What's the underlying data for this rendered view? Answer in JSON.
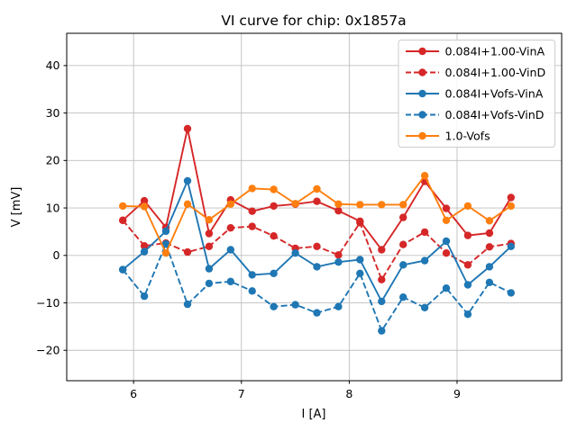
{
  "figure": {
    "title": "VI curve for chip: 0x1857a",
    "xlabel": "I [A]",
    "ylabel": "V [mV]"
  },
  "chart_data": {
    "type": "line",
    "title": "VI curve for chip: 0x1857a",
    "xlabel": "I [A]",
    "ylabel": "V [mV]",
    "xlim": [
      5.38,
      9.97
    ],
    "ylim": [
      -26.4,
      46.8
    ],
    "xticks": [
      6,
      7,
      8,
      9
    ],
    "yticks": [
      -20,
      -10,
      0,
      10,
      20,
      30,
      40
    ],
    "grid": true,
    "legend_position": "upper right",
    "grid_color": "#bfbfbf",
    "x": [
      5.9,
      6.1,
      6.3,
      6.5,
      6.7,
      6.9,
      7.1,
      7.3,
      7.5,
      7.7,
      7.9,
      8.1,
      8.3,
      8.5,
      8.7,
      8.9,
      9.1,
      9.3,
      9.5
    ],
    "series": [
      {
        "name": "0.084I+1.00-VinA",
        "color": "#d62728",
        "style": "solid",
        "marker": "circle",
        "values": [
          7.4,
          11.5,
          5.9,
          26.7,
          4.6,
          11.7,
          9.3,
          10.4,
          10.8,
          11.4,
          9.4,
          7.2,
          1.2,
          8.0,
          15.6,
          9.9,
          4.2,
          4.7,
          12.2
        ]
      },
      {
        "name": "0.084I+1.00-VinD",
        "color": "#d62728",
        "style": "dashed",
        "marker": "circle",
        "values": [
          7.4,
          2.0,
          2.6,
          0.7,
          1.9,
          5.8,
          6.1,
          4.1,
          1.5,
          1.9,
          0.1,
          6.9,
          -5.1,
          2.3,
          4.9,
          0.5,
          -2.0,
          1.8,
          2.5
        ]
      },
      {
        "name": "0.084I+Vofs-VinA",
        "color": "#1f77b4",
        "style": "solid",
        "marker": "circle",
        "values": [
          -3.0,
          0.8,
          5.1,
          15.7,
          -2.8,
          1.2,
          -4.1,
          -3.8,
          0.5,
          -2.4,
          -1.4,
          -0.9,
          -9.7,
          -2.0,
          -1.1,
          3.0,
          -6.2,
          -2.4,
          1.9
        ]
      },
      {
        "name": "0.084I+Vofs-VinD",
        "color": "#1f77b4",
        "style": "dashed",
        "marker": "circle",
        "values": [
          -3.0,
          -8.6,
          2.4,
          -10.3,
          -5.9,
          -5.5,
          -7.5,
          -10.8,
          -10.4,
          -12.1,
          -10.8,
          -3.8,
          -15.9,
          -8.8,
          -11.0,
          -6.9,
          -12.4,
          -5.7,
          -7.9
        ]
      },
      {
        "name": "1.0-Vofs",
        "color": "#ff7f0e",
        "style": "solid",
        "marker": "circle",
        "values": [
          10.4,
          10.3,
          0.5,
          10.8,
          7.5,
          10.8,
          14.1,
          13.9,
          10.9,
          14.0,
          10.8,
          10.7,
          10.7,
          10.7,
          16.8,
          7.4,
          10.4,
          7.3,
          10.4
        ]
      }
    ]
  }
}
